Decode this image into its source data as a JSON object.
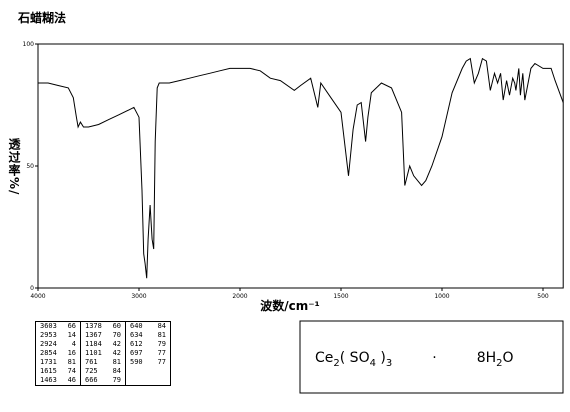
{
  "chart_data": {
    "type": "line",
    "title": "石蜡糊法",
    "y_label": "透过率%/",
    "x_label": "波数/cm⁻¹",
    "color": "#000000",
    "xlim": [
      4000,
      400
    ],
    "xticks": [
      4000,
      3000,
      2000,
      1500,
      1000,
      500
    ],
    "ylim": [
      0,
      100
    ],
    "yticks": [
      0,
      50,
      100
    ],
    "x": [
      4000,
      3900,
      3800,
      3700,
      3650,
      3620,
      3603,
      3580,
      3550,
      3500,
      3400,
      3300,
      3200,
      3100,
      3050,
      3000,
      2970,
      2953,
      2940,
      2924,
      2910,
      2890,
      2870,
      2854,
      2840,
      2820,
      2800,
      2700,
      2600,
      2500,
      2400,
      2300,
      2200,
      2100,
      2000,
      1950,
      1900,
      1850,
      1800,
      1731,
      1700,
      1650,
      1615,
      1600,
      1550,
      1500,
      1463,
      1440,
      1420,
      1400,
      1378,
      1367,
      1350,
      1300,
      1250,
      1200,
      1184,
      1160,
      1140,
      1101,
      1080,
      1050,
      1000,
      950,
      900,
      880,
      860,
      840,
      820,
      800,
      780,
      761,
      740,
      725,
      710,
      697,
      680,
      666,
      650,
      640,
      634,
      620,
      612,
      600,
      590,
      560,
      540,
      500,
      460,
      440,
      400
    ],
    "values": [
      84,
      84,
      83,
      82,
      78,
      70,
      66,
      68,
      66,
      66,
      67,
      69,
      71,
      73,
      74,
      70,
      40,
      14,
      10,
      4,
      20,
      34,
      20,
      16,
      60,
      82,
      84,
      84,
      85,
      86,
      87,
      88,
      89,
      90,
      90,
      90,
      89,
      86,
      85,
      81,
      83,
      86,
      74,
      84,
      78,
      72,
      46,
      65,
      75,
      76,
      60,
      70,
      80,
      84,
      82,
      72,
      42,
      50,
      46,
      42,
      44,
      50,
      62,
      80,
      90,
      93,
      94,
      84,
      88,
      94,
      93,
      81,
      88,
      84,
      88,
      77,
      85,
      79,
      86,
      84,
      81,
      90,
      79,
      88,
      77,
      90,
      92,
      90,
      90,
      85,
      76
    ]
  },
  "peak_table": {
    "columns": [
      [
        [
          3603,
          66
        ],
        [
          2953,
          14
        ],
        [
          2924,
          4
        ],
        [
          2854,
          16
        ],
        [
          1731,
          81
        ],
        [
          1615,
          74
        ],
        [
          1463,
          46
        ]
      ],
      [
        [
          1378,
          60
        ],
        [
          1367,
          70
        ],
        [
          1184,
          42
        ],
        [
          1101,
          42
        ],
        [
          761,
          81
        ],
        [
          725,
          84
        ],
        [
          666,
          79
        ]
      ],
      [
        [
          640,
          84
        ],
        [
          634,
          81
        ],
        [
          612,
          79
        ],
        [
          697,
          77
        ],
        [
          590,
          77
        ]
      ]
    ]
  },
  "formula": [
    {
      "text": "Ce",
      "sub": false
    },
    {
      "text": "2",
      "sub": true
    },
    {
      "text": "( SO",
      "sub": false
    },
    {
      "text": "4",
      "sub": true
    },
    {
      "text": " )",
      "sub": false
    },
    {
      "text": "3",
      "sub": true
    },
    {
      "text": "·",
      "sub": false
    },
    {
      "text": "8H",
      "sub": false
    },
    {
      "text": "2",
      "sub": true
    },
    {
      "text": "O",
      "sub": false
    }
  ]
}
